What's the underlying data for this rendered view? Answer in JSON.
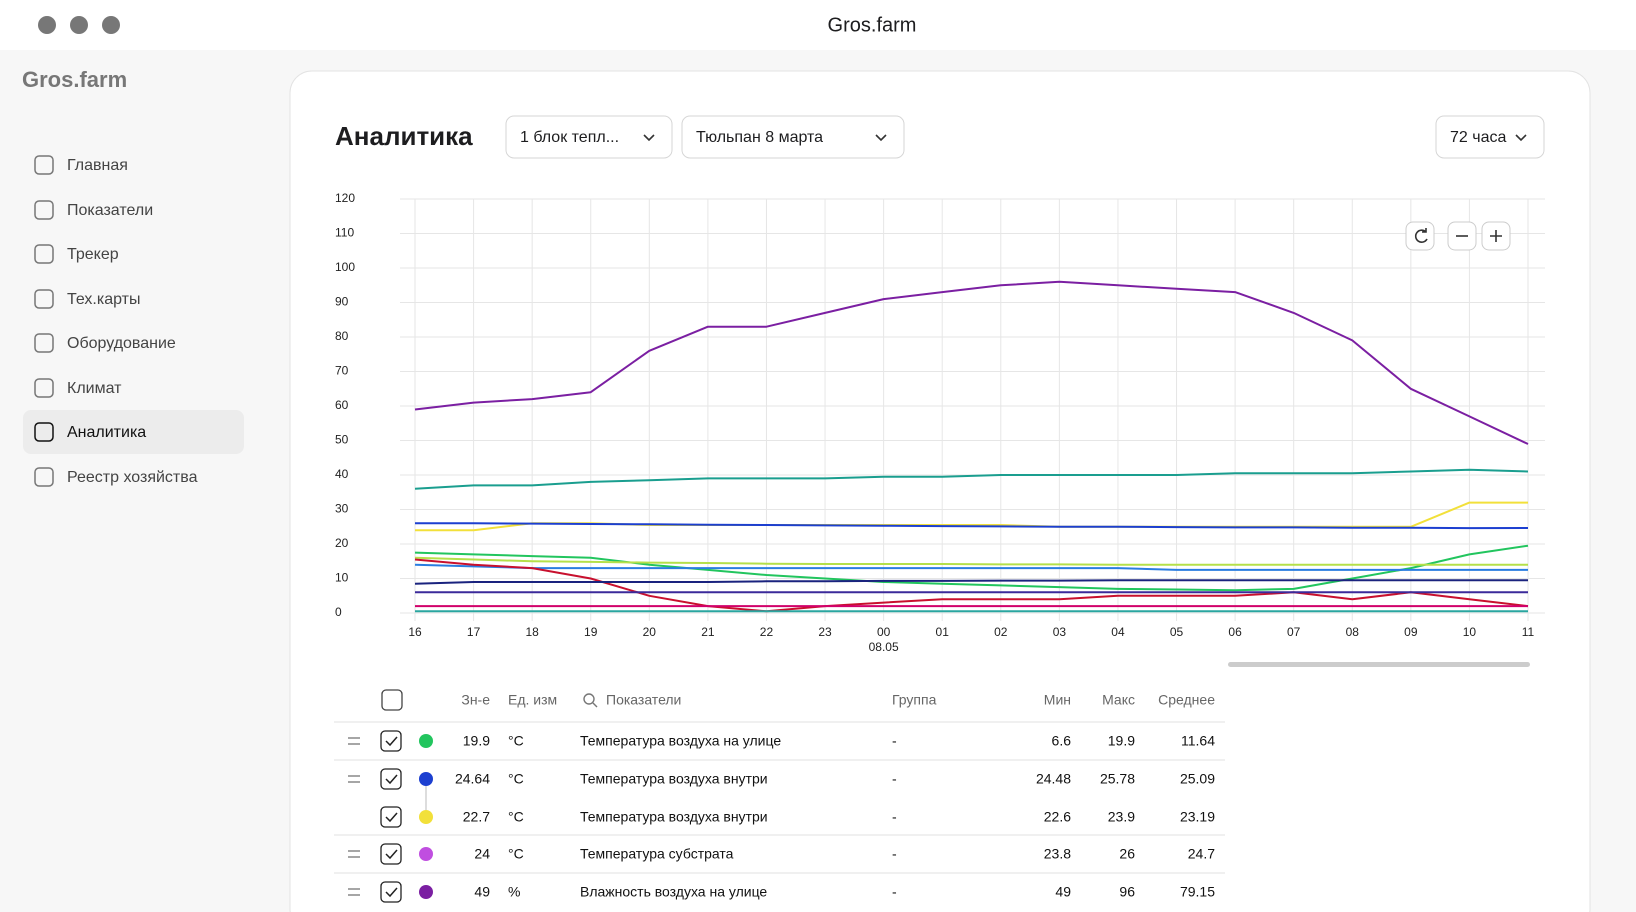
{
  "window": {
    "title": "Gros.farm"
  },
  "sidebar": {
    "logo": "Gros.farm",
    "active": 6,
    "items": [
      "Главная",
      "Показатели",
      "Трекер",
      "Тех.карты",
      "Оборудование",
      "Климат",
      "Аналитика",
      "Реестр хозяйства"
    ]
  },
  "header": {
    "title": "Аналитика",
    "selects": [
      "1 блок тепл...",
      "Тюльпан 8 марта"
    ],
    "period": "72 часа"
  },
  "chart_data": {
    "type": "line",
    "categories": [
      "16",
      "17",
      "18",
      "19",
      "20",
      "21",
      "22",
      "23",
      "00",
      "01",
      "02",
      "03",
      "04",
      "05",
      "06",
      "07",
      "08",
      "09",
      "10",
      "11"
    ],
    "date_labels": [
      null,
      null,
      null,
      null,
      null,
      null,
      null,
      null,
      "08.05",
      null,
      null,
      null,
      null,
      null,
      null,
      null,
      null,
      null,
      null,
      null
    ],
    "ylim": [
      0,
      120
    ],
    "yticks": [
      0,
      10,
      20,
      30,
      40,
      50,
      60,
      70,
      80,
      90,
      100,
      110,
      120
    ],
    "grid": true,
    "series": [
      {
        "color": "#7b1fa2",
        "values": [
          59,
          61,
          62,
          64,
          76,
          83,
          83,
          87,
          91,
          93,
          95,
          96,
          95,
          94,
          93,
          87,
          79,
          65,
          57,
          49
        ]
      },
      {
        "color": "#1a9e8f",
        "values": [
          36,
          37,
          37,
          38,
          38.5,
          39,
          39,
          39,
          39.5,
          39.5,
          40,
          40,
          40,
          40,
          40.5,
          40.5,
          40.5,
          41,
          41.5,
          41
        ]
      },
      {
        "color": "#f2e03a",
        "values": [
          24,
          24,
          26,
          26,
          25.5,
          25.5,
          25.5,
          25.5,
          25.5,
          25.5,
          25.5,
          25,
          25,
          25,
          25,
          25,
          25,
          25,
          32,
          32
        ]
      },
      {
        "color": "#1c3fd0",
        "values": [
          26,
          26,
          25.9,
          25.8,
          25.7,
          25.6,
          25.5,
          25.4,
          25.3,
          25.2,
          25.1,
          25,
          25,
          24.9,
          24.8,
          24.8,
          24.7,
          24.7,
          24.6,
          24.64
        ]
      },
      {
        "color": "#22c55e",
        "values": [
          17.5,
          17,
          16.5,
          16,
          14,
          12.5,
          11,
          10,
          9,
          8.5,
          8,
          7.5,
          7,
          6.8,
          6.6,
          7,
          10,
          13,
          17,
          19.5
        ]
      },
      {
        "color": "#b5e04a",
        "values": [
          16,
          15.5,
          15,
          14.8,
          14.6,
          14.5,
          14.3,
          14.2,
          14.2,
          14.2,
          14.1,
          14.1,
          14,
          14,
          14,
          14,
          14,
          14,
          14,
          14
        ]
      },
      {
        "color": "#2a7de1",
        "values": [
          14,
          13.5,
          13,
          13,
          13,
          13,
          13,
          13,
          13,
          13,
          13,
          13,
          13,
          12.5,
          12.5,
          12.5,
          12.5,
          12.5,
          12.5,
          12.5
        ]
      },
      {
        "color": "#c8102e",
        "values": [
          15.5,
          14,
          13,
          10,
          5,
          2,
          0.5,
          2,
          3,
          4,
          4,
          4,
          5,
          5,
          5,
          6,
          4,
          6,
          4,
          2
        ]
      },
      {
        "color": "#1a237e",
        "values": [
          8.5,
          9,
          9,
          9,
          9,
          9,
          9.2,
          9.2,
          9.3,
          9.3,
          9.4,
          9.4,
          9.5,
          9.5,
          9.5,
          9.5,
          9.5,
          9.5,
          9.5,
          9.5
        ]
      },
      {
        "color": "#3b2a9a",
        "values": [
          6,
          6,
          6,
          6,
          6,
          6,
          6,
          6,
          6,
          6,
          6,
          6,
          6,
          6,
          6,
          6,
          6,
          6,
          6,
          6
        ]
      },
      {
        "color": "#d1006a",
        "values": [
          2,
          2,
          2,
          2,
          2,
          2,
          2,
          2,
          2,
          2,
          2,
          2,
          2,
          2,
          2,
          2,
          2,
          2,
          2,
          2
        ]
      },
      {
        "color": "#2aa6a0",
        "values": [
          0.5,
          0.5,
          0.5,
          0.5,
          0.5,
          0.5,
          0.5,
          0.5,
          0.5,
          0.5,
          0.5,
          0.5,
          0.5,
          0.5,
          0.5,
          0.5,
          0.5,
          0.5,
          0.5,
          0.5
        ]
      }
    ]
  },
  "table": {
    "columns": {
      "value": "Зн-е",
      "unit": "Ед. изм",
      "name": "Показатели",
      "group": "Группа",
      "min": "Мин",
      "max": "Макс",
      "avg": "Среднее"
    },
    "rows": [
      {
        "handle": true,
        "color": "#22c55e",
        "value": 19.9,
        "unit": "°C",
        "name": "Температура воздуха на улице",
        "group": "-",
        "min": 6.6,
        "max": 19.9,
        "avg": 11.64
      },
      {
        "handle": true,
        "color": "#1c3fd0",
        "value": 24.64,
        "unit": "°C",
        "name": "Температура воздуха внутри",
        "group": "-",
        "min": 24.48,
        "max": 25.78,
        "avg": 25.09
      },
      {
        "handle": false,
        "color": "#f2e03a",
        "value": 22.7,
        "unit": "°C",
        "name": "Температура воздуха внутри",
        "group": "-",
        "min": 22.6,
        "max": 23.9,
        "avg": 23.19
      },
      {
        "handle": true,
        "color": "#c04ee0",
        "value": 24,
        "unit": "°C",
        "name": "Температура субстрата",
        "group": "-",
        "min": 23.8,
        "max": 26,
        "avg": 24.7
      },
      {
        "handle": true,
        "color": "#7b1fa2",
        "value": 49,
        "unit": "%",
        "name": "Влажность воздуха на улице",
        "group": "-",
        "min": 49,
        "max": 96,
        "avg": 79.15
      }
    ]
  }
}
